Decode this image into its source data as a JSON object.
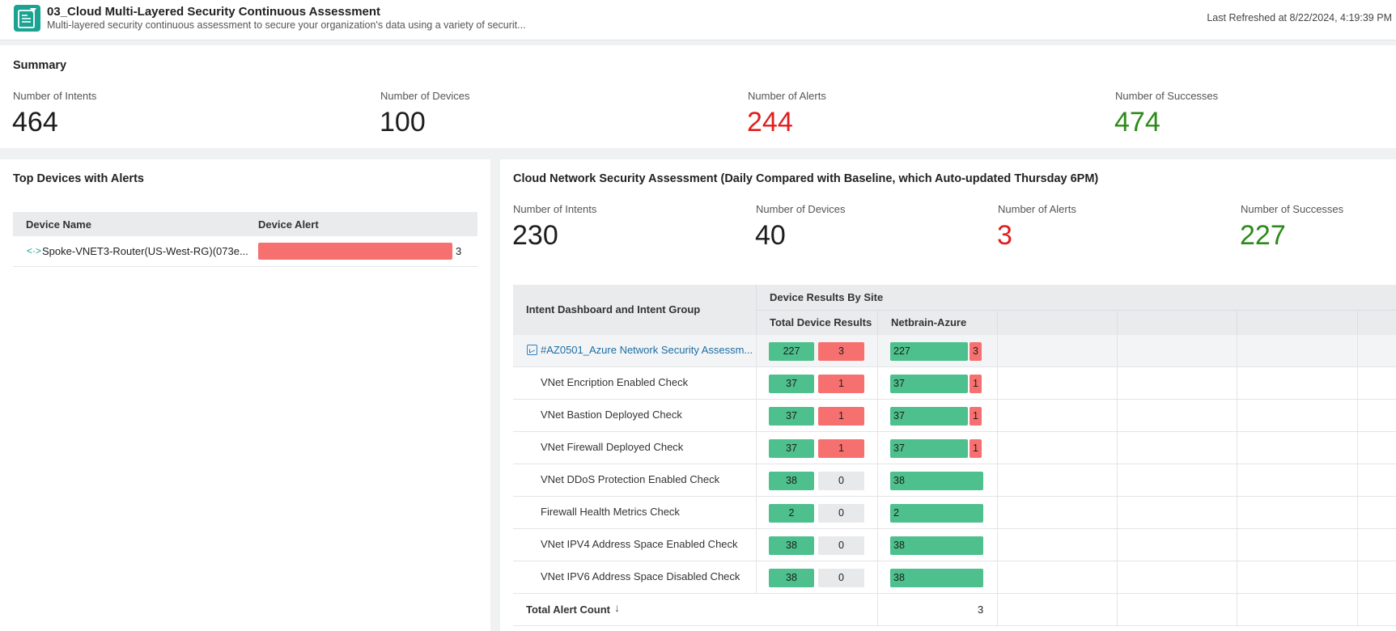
{
  "header": {
    "title": "03_Cloud Multi-Layered Security Continuous Assessment",
    "subtitle": "Multi-layered security continuous assessment to secure your organization's data using a variety of securit...",
    "last_refreshed": "Last Refreshed at 8/22/2024, 4:19:39 PM",
    "icon": "dashboard-doc-icon",
    "accent": "#1aa392"
  },
  "summary": {
    "title": "Summary",
    "stats": [
      {
        "label": "Number of Intents",
        "value": "464",
        "color": "#1d1d1d"
      },
      {
        "label": "Number of Devices",
        "value": "100",
        "color": "#1d1d1d"
      },
      {
        "label": "Number of Alerts",
        "value": "244",
        "color": "#e01e1e"
      },
      {
        "label": "Number of Successes",
        "value": "474",
        "color": "#2d8a1a"
      }
    ]
  },
  "top_devices": {
    "title": "Top Devices with Alerts",
    "columns": [
      "Device Name",
      "Device Alert"
    ],
    "rows": [
      {
        "name": "Spoke-VNET3-Router(US-West-RG)(073e...",
        "alert": "3",
        "alert_fraction": 1.0
      }
    ]
  },
  "cloud": {
    "title": "Cloud Network Security Assessment (Daily Compared with Baseline, which Auto-updated Thursday 6PM)",
    "stats": [
      {
        "label": "Number of Intents",
        "value": "230"
      },
      {
        "label": "Number of Devices",
        "value": "40"
      },
      {
        "label": "Number of Alerts",
        "value": "3"
      },
      {
        "label": "Number of Successes",
        "value": "227"
      }
    ],
    "table": {
      "col_intent": "Intent Dashboard and Intent Group",
      "col_group": "Device Results By Site",
      "col_total": "Total Device Results",
      "col_site": "Netbrain-Azure",
      "rows": [
        {
          "label": "#AZ0501_Azure Network Security Assessm...",
          "ok": "227",
          "alert": "3",
          "site_ok": "227",
          "site_alert": "3"
        },
        {
          "label": "VNet Encription Enabled Check",
          "ok": "37",
          "alert": "1",
          "site_ok": "37",
          "site_alert": "1"
        },
        {
          "label": "VNet Bastion Deployed Check",
          "ok": "37",
          "alert": "1",
          "site_ok": "37",
          "site_alert": "1"
        },
        {
          "label": "VNet Firewall Deployed Check",
          "ok": "37",
          "alert": "1",
          "site_ok": "37",
          "site_alert": "1"
        },
        {
          "label": "VNet DDoS Protection Enabled Check",
          "ok": "38",
          "alert": "0",
          "site_ok": "38",
          "site_alert": ""
        },
        {
          "label": "Firewall Health Metrics Check",
          "ok": "2",
          "alert": "0",
          "site_ok": "2",
          "site_alert": ""
        },
        {
          "label": "VNet IPV4 Address Space Enabled Check",
          "ok": "38",
          "alert": "0",
          "site_ok": "38",
          "site_alert": ""
        },
        {
          "label": "VNet IPV6 Address Space Disabled Check",
          "ok": "38",
          "alert": "0",
          "site_ok": "38",
          "site_alert": ""
        }
      ],
      "total_label": "Total Alert Count",
      "total_sort_icon": "arrow-down-icon",
      "total_value": "3"
    },
    "colors": {
      "ok": "#4ec08d",
      "alert": "#f77070",
      "zero": "#e8e9eb",
      "link": "#1c6ea4"
    }
  }
}
